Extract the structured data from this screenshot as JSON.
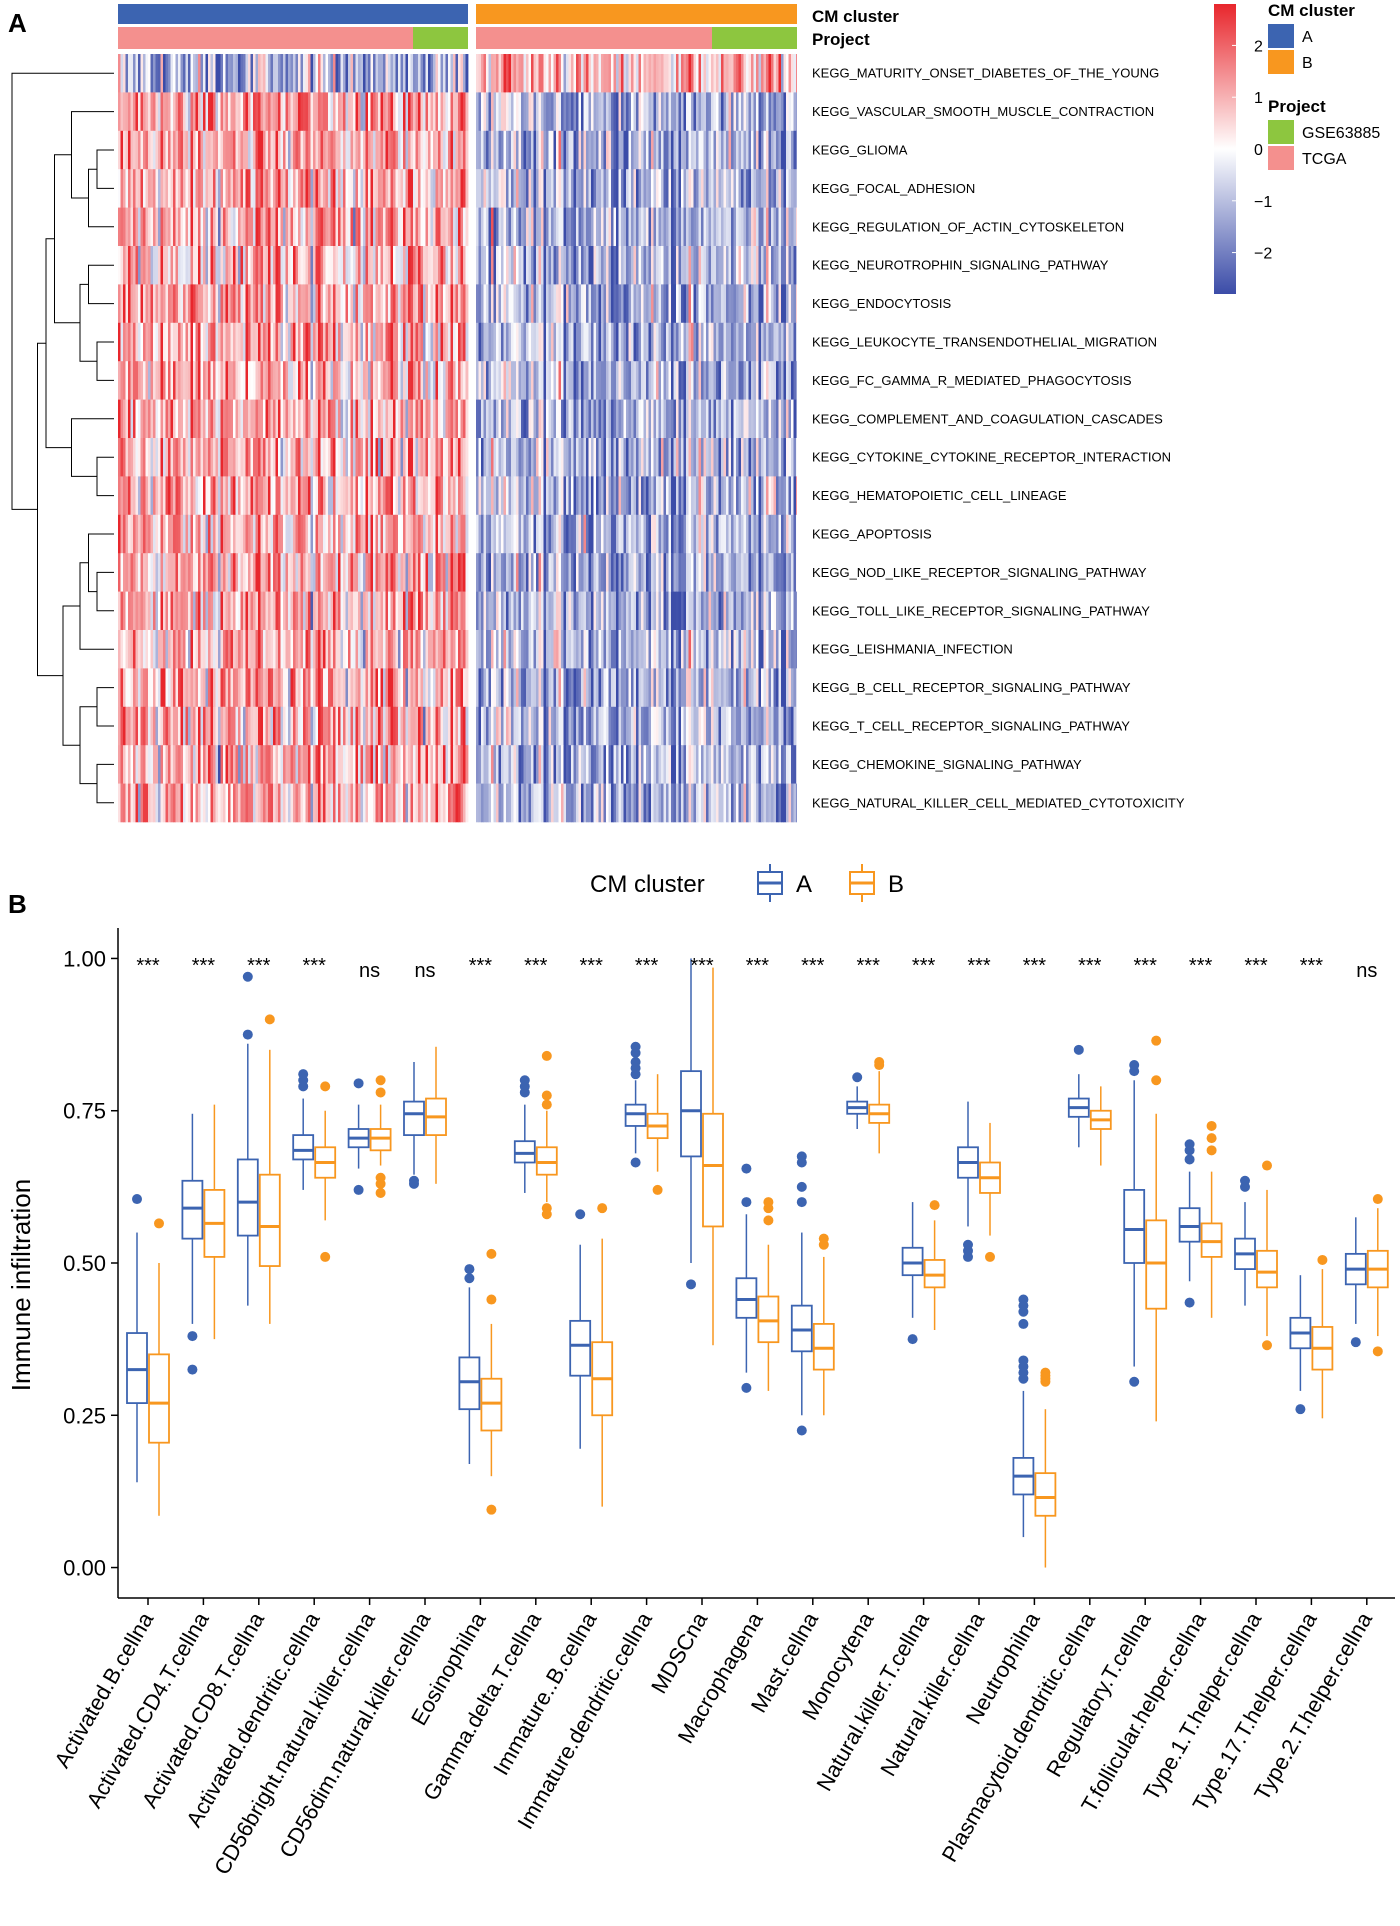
{
  "chart_data": [
    {
      "panel": "A",
      "type": "heatmap",
      "rows": [
        "KEGG_MATURITY_ONSET_DIABETES_OF_THE_YOUNG",
        "KEGG_VASCULAR_SMOOTH_MUSCLE_CONTRACTION",
        "KEGG_GLIOMA",
        "KEGG_FOCAL_ADHESION",
        "KEGG_REGULATION_OF_ACTIN_CYTOSKELETON",
        "KEGG_NEUROTROPHIN_SIGNALING_PATHWAY",
        "KEGG_ENDOCYTOSIS",
        "KEGG_LEUKOCYTE_TRANSENDOTHELIAL_MIGRATION",
        "KEGG_FC_GAMMA_R_MEDIATED_PHAGOCYTOSIS",
        "KEGG_COMPLEMENT_AND_COAGULATION_CASCADES",
        "KEGG_CYTOKINE_CYTOKINE_RECEPTOR_INTERACTION",
        "KEGG_HEMATOPOIETIC_CELL_LINEAGE",
        "KEGG_APOPTOSIS",
        "KEGG_NOD_LIKE_RECEPTOR_SIGNALING_PATHWAY",
        "KEGG_TOLL_LIKE_RECEPTOR_SIGNALING_PATHWAY",
        "KEGG_LEISHMANIA_INFECTION",
        "KEGG_B_CELL_RECEPTOR_SIGNALING_PATHWAY",
        "KEGG_T_CELL_RECEPTOR_SIGNALING_PATHWAY",
        "KEGG_CHEMOKINE_SIGNALING_PATHWAY",
        "KEGG_NATURAL_KILLER_CELL_MEDIATED_CYTOTOXICITY"
      ],
      "column_annotations": [
        {
          "name": "CM cluster",
          "groups": [
            {
              "label": "A",
              "share": 0.5
            },
            {
              "label": "B",
              "share": 0.5
            }
          ]
        },
        {
          "name": "Project",
          "groups": [
            {
              "label": "TCGA",
              "share": 0.84
            },
            {
              "label": "GSE63885",
              "share": 0.16
            }
          ]
        }
      ],
      "pattern": "cluster A mostly high (red), cluster B mostly low (blue); first row reversed",
      "color_scale": {
        "ticks": [
          2,
          1,
          0,
          -1,
          -2
        ],
        "tick_labels": [
          "2",
          "1",
          "0",
          "−1",
          "−2"
        ],
        "range": [
          -2.8,
          2.8
        ],
        "low": "#3B4CA8",
        "mid": "#FFFFFF",
        "high": "#E8262C"
      },
      "legend": {
        "cm_title": "CM cluster",
        "cm_items": [
          {
            "label": "A",
            "color": "#3C64B1"
          },
          {
            "label": "B",
            "color": "#F8971F"
          }
        ],
        "project_title": "Project",
        "project_items": [
          {
            "label": "GSE63885",
            "color": "#8DC63F"
          },
          {
            "label": "TCGA",
            "color": "#F4908E"
          }
        ]
      }
    },
    {
      "panel": "B",
      "type": "box",
      "ylabel": "Immune infiltration",
      "ylim": [
        -0.05,
        1.05
      ],
      "yticks": [
        0.0,
        0.25,
        0.5,
        0.75,
        1.0
      ],
      "ytick_labels": [
        "0.00",
        "0.25",
        "0.50",
        "0.75",
        "1.00"
      ],
      "legend_title": "CM cluster",
      "legend_items": [
        {
          "label": "A",
          "color": "#3C64B1"
        },
        {
          "label": "B",
          "color": "#F8971F"
        }
      ],
      "categories": [
        {
          "label": "Activated.B.cellna",
          "sig": "***",
          "A": {
            "q1": 0.27,
            "med": 0.325,
            "q3": 0.385,
            "lo": 0.14,
            "hi": 0.55,
            "out": [
              0.605
            ]
          },
          "B": {
            "q1": 0.205,
            "med": 0.27,
            "q3": 0.35,
            "lo": 0.085,
            "hi": 0.5,
            "out": [
              0.565
            ]
          }
        },
        {
          "label": "Activated.CD4.T.cellna",
          "sig": "***",
          "A": {
            "q1": 0.54,
            "med": 0.59,
            "q3": 0.635,
            "lo": 0.4,
            "hi": 0.745,
            "out": [
              0.38,
              0.325
            ]
          },
          "B": {
            "q1": 0.51,
            "med": 0.565,
            "q3": 0.62,
            "lo": 0.375,
            "hi": 0.76,
            "out": []
          }
        },
        {
          "label": "Activated.CD8.T.cellna",
          "sig": "***",
          "A": {
            "q1": 0.545,
            "med": 0.6,
            "q3": 0.67,
            "lo": 0.43,
            "hi": 0.86,
            "out": [
              0.875,
              0.97
            ]
          },
          "B": {
            "q1": 0.495,
            "med": 0.56,
            "q3": 0.645,
            "lo": 0.4,
            "hi": 0.85,
            "out": [
              0.9
            ]
          }
        },
        {
          "label": "Activated.dendritic.cellna",
          "sig": "***",
          "A": {
            "q1": 0.67,
            "med": 0.685,
            "q3": 0.71,
            "lo": 0.62,
            "hi": 0.77,
            "out": [
              0.79,
              0.8,
              0.81
            ]
          },
          "B": {
            "q1": 0.64,
            "med": 0.665,
            "q3": 0.69,
            "lo": 0.57,
            "hi": 0.75,
            "out": [
              0.79,
              0.51
            ]
          }
        },
        {
          "label": "CD56bright.natural.killer.cellna",
          "sig": "ns",
          "A": {
            "q1": 0.69,
            "med": 0.705,
            "q3": 0.72,
            "lo": 0.655,
            "hi": 0.76,
            "out": [
              0.795,
              0.62
            ]
          },
          "B": {
            "q1": 0.685,
            "med": 0.705,
            "q3": 0.72,
            "lo": 0.66,
            "hi": 0.76,
            "out": [
              0.78,
              0.8,
              0.64,
              0.63,
              0.615
            ]
          }
        },
        {
          "label": "CD56dim.natural.killer.cellna",
          "sig": "ns",
          "A": {
            "q1": 0.71,
            "med": 0.745,
            "q3": 0.765,
            "lo": 0.645,
            "hi": 0.83,
            "out": [
              0.635,
              0.63
            ]
          },
          "B": {
            "q1": 0.71,
            "med": 0.74,
            "q3": 0.77,
            "lo": 0.63,
            "hi": 0.855,
            "out": []
          }
        },
        {
          "label": "Eosinophilna",
          "sig": "***",
          "A": {
            "q1": 0.26,
            "med": 0.305,
            "q3": 0.345,
            "lo": 0.17,
            "hi": 0.46,
            "out": [
              0.475,
              0.49
            ]
          },
          "B": {
            "q1": 0.225,
            "med": 0.27,
            "q3": 0.31,
            "lo": 0.15,
            "hi": 0.4,
            "out": [
              0.44,
              0.515,
              0.095
            ]
          }
        },
        {
          "label": "Gamma.delta.T.cellna",
          "sig": "***",
          "A": {
            "q1": 0.665,
            "med": 0.68,
            "q3": 0.7,
            "lo": 0.615,
            "hi": 0.76,
            "out": [
              0.78,
              0.79,
              0.8
            ]
          },
          "B": {
            "q1": 0.645,
            "med": 0.665,
            "q3": 0.69,
            "lo": 0.6,
            "hi": 0.75,
            "out": [
              0.76,
              0.775,
              0.84,
              0.59,
              0.58
            ]
          }
        },
        {
          "label": "Immature..B.cellna",
          "sig": "***",
          "A": {
            "q1": 0.315,
            "med": 0.365,
            "q3": 0.405,
            "lo": 0.195,
            "hi": 0.53,
            "out": [
              0.58
            ]
          },
          "B": {
            "q1": 0.25,
            "med": 0.31,
            "q3": 0.37,
            "lo": 0.1,
            "hi": 0.54,
            "out": [
              0.59
            ]
          }
        },
        {
          "label": "Immature.dendritic.cellna",
          "sig": "***",
          "A": {
            "q1": 0.725,
            "med": 0.745,
            "q3": 0.76,
            "lo": 0.68,
            "hi": 0.8,
            "out": [
              0.81,
              0.82,
              0.83,
              0.845,
              0.855,
              0.665
            ]
          },
          "B": {
            "q1": 0.705,
            "med": 0.725,
            "q3": 0.745,
            "lo": 0.65,
            "hi": 0.81,
            "out": [
              0.62
            ]
          }
        },
        {
          "label": "MDSCna",
          "sig": "***",
          "A": {
            "q1": 0.675,
            "med": 0.75,
            "q3": 0.815,
            "lo": 0.5,
            "hi": 1.0,
            "out": [
              0.465
            ]
          },
          "B": {
            "q1": 0.56,
            "med": 0.66,
            "q3": 0.745,
            "lo": 0.365,
            "hi": 0.985,
            "out": []
          }
        },
        {
          "label": "Macrophagena",
          "sig": "***",
          "A": {
            "q1": 0.41,
            "med": 0.44,
            "q3": 0.475,
            "lo": 0.32,
            "hi": 0.58,
            "out": [
              0.6,
              0.655,
              0.295
            ]
          },
          "B": {
            "q1": 0.37,
            "med": 0.405,
            "q3": 0.445,
            "lo": 0.29,
            "hi": 0.53,
            "out": [
              0.57,
              0.59,
              0.6
            ]
          }
        },
        {
          "label": "Mast.cellna",
          "sig": "***",
          "A": {
            "q1": 0.355,
            "med": 0.39,
            "q3": 0.43,
            "lo": 0.25,
            "hi": 0.55,
            "out": [
              0.6,
              0.625,
              0.665,
              0.675,
              0.225
            ]
          },
          "B": {
            "q1": 0.325,
            "med": 0.36,
            "q3": 0.4,
            "lo": 0.25,
            "hi": 0.51,
            "out": [
              0.53,
              0.54
            ]
          }
        },
        {
          "label": "Monocytena",
          "sig": "***",
          "A": {
            "q1": 0.745,
            "med": 0.755,
            "q3": 0.765,
            "lo": 0.72,
            "hi": 0.79,
            "out": [
              0.805
            ]
          },
          "B": {
            "q1": 0.73,
            "med": 0.745,
            "q3": 0.76,
            "lo": 0.68,
            "hi": 0.815,
            "out": [
              0.825,
              0.83
            ]
          }
        },
        {
          "label": "Natural.killer.T.cellna",
          "sig": "***",
          "A": {
            "q1": 0.48,
            "med": 0.5,
            "q3": 0.525,
            "lo": 0.41,
            "hi": 0.6,
            "out": [
              0.375
            ]
          },
          "B": {
            "q1": 0.46,
            "med": 0.48,
            "q3": 0.505,
            "lo": 0.39,
            "hi": 0.57,
            "out": [
              0.595
            ]
          }
        },
        {
          "label": "Natural.killer.cellna",
          "sig": "***",
          "A": {
            "q1": 0.64,
            "med": 0.665,
            "q3": 0.69,
            "lo": 0.56,
            "hi": 0.765,
            "out": [
              0.53,
              0.52,
              0.51
            ]
          },
          "B": {
            "q1": 0.615,
            "med": 0.64,
            "q3": 0.665,
            "lo": 0.545,
            "hi": 0.73,
            "out": [
              0.51
            ]
          }
        },
        {
          "label": "Neutrophilna",
          "sig": "***",
          "A": {
            "q1": 0.12,
            "med": 0.15,
            "q3": 0.18,
            "lo": 0.05,
            "hi": 0.29,
            "out": [
              0.31,
              0.32,
              0.33,
              0.34,
              0.4,
              0.42,
              0.43,
              0.44
            ]
          },
          "B": {
            "q1": 0.085,
            "med": 0.115,
            "q3": 0.155,
            "lo": 0.0,
            "hi": 0.26,
            "out": [
              0.305,
              0.31,
              0.315,
              0.32
            ]
          }
        },
        {
          "label": "Plasmacytoid.dendritic.cellna",
          "sig": "***",
          "A": {
            "q1": 0.74,
            "med": 0.755,
            "q3": 0.77,
            "lo": 0.69,
            "hi": 0.81,
            "out": [
              0.85
            ]
          },
          "B": {
            "q1": 0.72,
            "med": 0.735,
            "q3": 0.75,
            "lo": 0.66,
            "hi": 0.79,
            "out": []
          }
        },
        {
          "label": "Regulatory.T.cellna",
          "sig": "***",
          "A": {
            "q1": 0.5,
            "med": 0.555,
            "q3": 0.62,
            "lo": 0.33,
            "hi": 0.8,
            "out": [
              0.815,
              0.825,
              0.305
            ]
          },
          "B": {
            "q1": 0.425,
            "med": 0.5,
            "q3": 0.57,
            "lo": 0.24,
            "hi": 0.745,
            "out": [
              0.8,
              0.865
            ]
          }
        },
        {
          "label": "T.follicular.helper.cellna",
          "sig": "***",
          "A": {
            "q1": 0.535,
            "med": 0.56,
            "q3": 0.59,
            "lo": 0.47,
            "hi": 0.65,
            "out": [
              0.67,
              0.685,
              0.695,
              0.435
            ]
          },
          "B": {
            "q1": 0.51,
            "med": 0.535,
            "q3": 0.565,
            "lo": 0.41,
            "hi": 0.65,
            "out": [
              0.685,
              0.705,
              0.725
            ]
          }
        },
        {
          "label": "Type.1.T.helper.cellna",
          "sig": "***",
          "A": {
            "q1": 0.49,
            "med": 0.515,
            "q3": 0.54,
            "lo": 0.43,
            "hi": 0.6,
            "out": [
              0.625,
              0.635
            ]
          },
          "B": {
            "q1": 0.46,
            "med": 0.485,
            "q3": 0.52,
            "lo": 0.38,
            "hi": 0.62,
            "out": [
              0.66,
              0.365
            ]
          }
        },
        {
          "label": "Type.17.T.helper.cellna",
          "sig": "***",
          "A": {
            "q1": 0.36,
            "med": 0.385,
            "q3": 0.41,
            "lo": 0.29,
            "hi": 0.48,
            "out": [
              0.26
            ]
          },
          "B": {
            "q1": 0.325,
            "med": 0.36,
            "q3": 0.395,
            "lo": 0.245,
            "hi": 0.49,
            "out": [
              0.505
            ]
          }
        },
        {
          "label": "Type.2.T.helper.cellna",
          "sig": "ns",
          "A": {
            "q1": 0.465,
            "med": 0.49,
            "q3": 0.515,
            "lo": 0.4,
            "hi": 0.575,
            "out": [
              0.37
            ]
          },
          "B": {
            "q1": 0.46,
            "med": 0.49,
            "q3": 0.52,
            "lo": 0.38,
            "hi": 0.59,
            "out": [
              0.605,
              0.355
            ]
          }
        }
      ]
    }
  ],
  "labels": {
    "panel_a": "A",
    "panel_b": "B",
    "cm_cluster_annotation": "CM cluster",
    "project_annotation": "Project"
  }
}
